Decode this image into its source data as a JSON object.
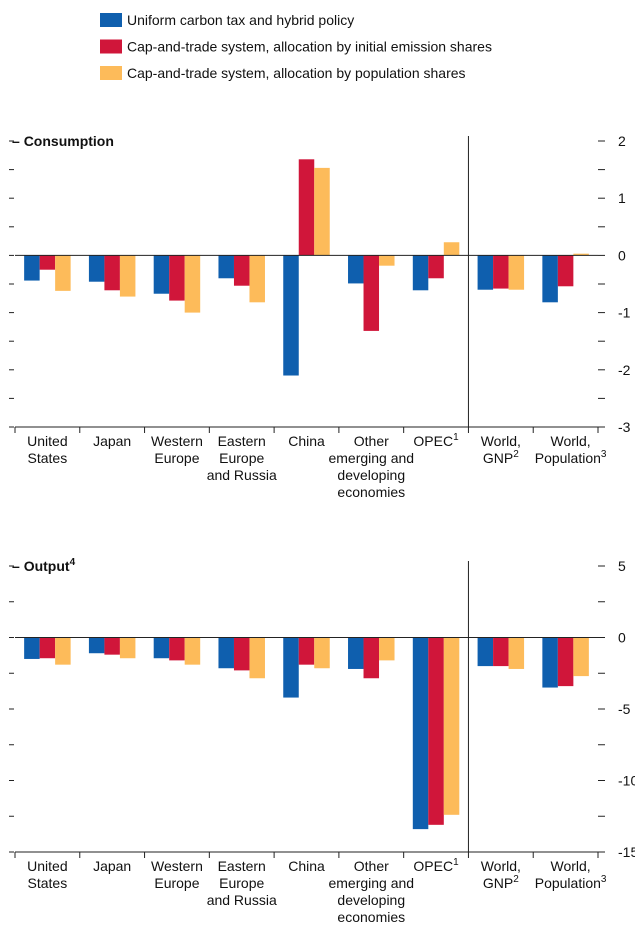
{
  "chart_data": [
    {
      "type": "bar",
      "title": "Consumption",
      "categories": [
        [
          "United",
          "States"
        ],
        [
          "Japan"
        ],
        [
          "Western",
          "Europe"
        ],
        [
          "Eastern",
          "Europe",
          "and Russia"
        ],
        [
          "China"
        ],
        [
          "Other",
          "emerging and",
          "developing",
          "economies"
        ],
        [
          "OPEC"
        ],
        [
          "World,",
          "GNP"
        ],
        [
          "World,",
          "Population"
        ]
      ],
      "category_notes": [
        null,
        null,
        null,
        null,
        null,
        null,
        "1",
        "2",
        "3"
      ],
      "divider_after": 6,
      "series": [
        {
          "name": "Uniform carbon tax and hybrid policy",
          "color": "#0f5fae",
          "values": [
            -0.44,
            -0.46,
            -0.67,
            -0.4,
            -2.1,
            -0.49,
            -0.61,
            -0.6,
            -0.82
          ]
        },
        {
          "name": "Cap-and-trade system, allocation by initial emission shares",
          "color": "#d0163a",
          "values": [
            -0.25,
            -0.61,
            -0.79,
            -0.53,
            1.68,
            -1.32,
            -0.4,
            -0.58,
            -0.54
          ]
        },
        {
          "name": "Cap-and-trade system, allocation by population shares",
          "color": "#fdbb5a",
          "values": [
            -0.62,
            -0.72,
            -1.0,
            -0.82,
            1.53,
            -0.18,
            0.23,
            -0.6,
            0.03
          ]
        }
      ],
      "ylim": [
        -3,
        2
      ],
      "yticks": [
        -3,
        -2,
        -1,
        0,
        1,
        2
      ]
    },
    {
      "type": "bar",
      "title": "Output",
      "title_note": "4",
      "categories": [
        [
          "United",
          "States"
        ],
        [
          "Japan"
        ],
        [
          "Western",
          "Europe"
        ],
        [
          "Eastern",
          "Europe",
          "and Russia"
        ],
        [
          "China"
        ],
        [
          "Other",
          "emerging and",
          "developing",
          "economies"
        ],
        [
          "OPEC"
        ],
        [
          "World,",
          "GNP"
        ],
        [
          "World,",
          "Population"
        ]
      ],
      "category_notes": [
        null,
        null,
        null,
        null,
        null,
        null,
        "1",
        "2",
        "3"
      ],
      "divider_after": 6,
      "series": [
        {
          "color": "#0f5fae",
          "values": [
            -1.5,
            -1.1,
            -1.45,
            -2.15,
            -4.2,
            -2.2,
            -13.4,
            -2.0,
            -3.5
          ]
        },
        {
          "color": "#d0163a",
          "values": [
            -1.45,
            -1.2,
            -1.6,
            -2.3,
            -1.9,
            -2.85,
            -13.1,
            -2.0,
            -3.4
          ]
        },
        {
          "color": "#fdbb5a",
          "values": [
            -1.9,
            -1.45,
            -1.9,
            -2.85,
            -2.15,
            -1.6,
            -12.4,
            -2.2,
            -2.7
          ]
        }
      ],
      "ylim": [
        -15,
        5
      ],
      "yticks": [
        -15,
        -10,
        -5,
        0,
        5
      ]
    }
  ]
}
